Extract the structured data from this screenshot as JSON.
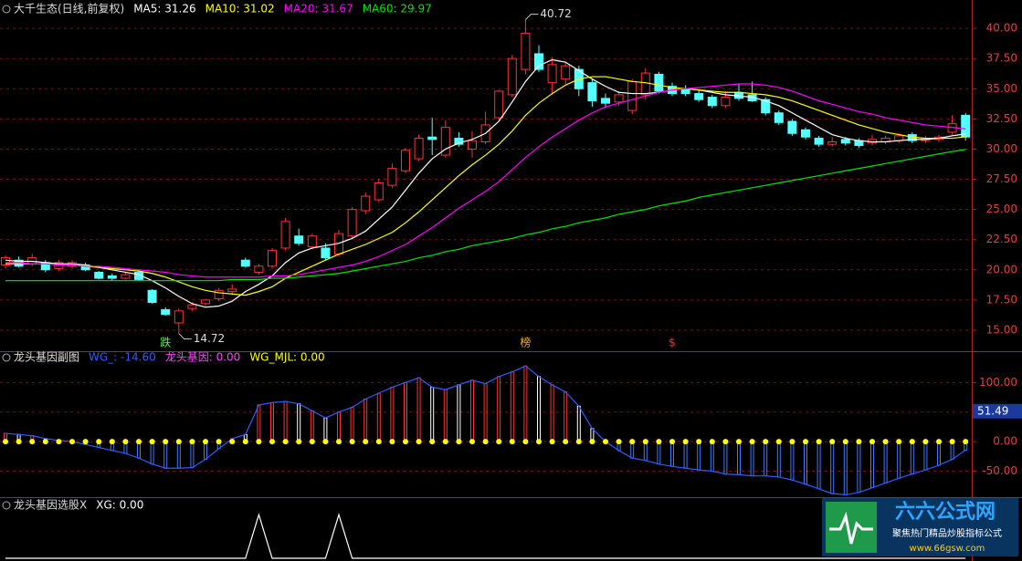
{
  "chart_data": [
    {
      "type": "candlestick",
      "title": "大千生态(日线,前复权)",
      "candles": {
        "open": [
          20.4,
          20.8,
          20.5,
          20.6,
          20.1,
          20.3,
          20.4,
          19.8,
          19.5,
          19.3,
          19.8,
          18.3,
          16.7,
          15.6,
          16.8,
          17.2,
          17.6,
          18.2,
          20.8,
          19.8,
          20.3,
          21.8,
          22.8,
          21.9,
          21.8,
          21.3,
          22.8,
          24.9,
          25.8,
          27.0,
          28.2,
          29.2,
          31.0,
          29.5,
          30.9,
          30.0,
          30.6,
          32.6,
          34.5,
          36.6,
          37.9,
          35.5,
          35.8,
          36.6,
          35.5,
          34.2,
          33.9,
          33.2,
          34.5,
          36.2,
          35.2,
          35.0,
          34.6,
          34.3,
          33.6,
          34.7,
          34.5,
          34.1,
          33.0,
          32.3,
          31.6,
          30.9,
          30.4,
          30.8,
          30.7,
          30.5,
          30.6,
          30.7,
          31.2,
          30.7,
          30.8,
          31.4,
          32.8
        ],
        "high": [
          21.2,
          21.1,
          21.3,
          20.8,
          20.8,
          20.8,
          20.6,
          19.9,
          19.7,
          19.8,
          20.0,
          18.4,
          16.9,
          16.8,
          17.3,
          17.6,
          18.5,
          18.8,
          21.0,
          20.5,
          21.8,
          24.3,
          23.4,
          23.0,
          22.2,
          23.3,
          25.2,
          26.4,
          27.5,
          28.8,
          30.1,
          31.2,
          32.6,
          32.4,
          31.4,
          31.5,
          33.1,
          34.9,
          37.8,
          40.72,
          38.6,
          37.6,
          37.2,
          36.9,
          35.8,
          34.6,
          34.8,
          35.8,
          36.7,
          36.4,
          35.5,
          35.3,
          34.9,
          34.5,
          34.8,
          35.4,
          35.6,
          34.3,
          33.2,
          32.5,
          31.8,
          31.1,
          31.0,
          31.0,
          30.9,
          31.2,
          31.1,
          31.3,
          31.4,
          31.1,
          31.2,
          32.8,
          33.0
        ],
        "low": [
          20.1,
          20.2,
          20.3,
          19.8,
          19.9,
          20.1,
          19.9,
          19.2,
          19.1,
          19.2,
          19.1,
          17.2,
          16.2,
          14.72,
          16.6,
          17.0,
          17.4,
          17.9,
          20.2,
          19.6,
          20.1,
          21.6,
          22.0,
          21.7,
          20.8,
          21.1,
          22.6,
          24.6,
          25.6,
          26.8,
          28.0,
          29.0,
          29.5,
          29.3,
          30.2,
          29.3,
          30.4,
          32.3,
          34.3,
          36.2,
          36.4,
          34.5,
          35.4,
          34.4,
          33.5,
          33.4,
          33.6,
          32.9,
          34.1,
          34.6,
          34.4,
          34.4,
          33.9,
          33.4,
          33.4,
          34.0,
          33.9,
          32.8,
          32.0,
          31.1,
          30.8,
          30.2,
          30.2,
          30.3,
          30.1,
          30.3,
          30.4,
          30.5,
          30.5,
          30.5,
          30.6,
          31.2,
          30.7
        ],
        "close": [
          21.0,
          20.3,
          21.0,
          20.0,
          20.6,
          20.6,
          20.0,
          19.3,
          19.3,
          19.6,
          19.2,
          17.3,
          16.3,
          16.6,
          17.1,
          17.5,
          18.3,
          18.4,
          20.3,
          20.3,
          21.6,
          24.0,
          22.2,
          22.8,
          21.0,
          23.0,
          25.0,
          26.1,
          27.2,
          28.4,
          29.9,
          30.9,
          30.8,
          31.8,
          30.4,
          30.7,
          32.0,
          34.8,
          37.5,
          39.6,
          36.6,
          37.0,
          36.9,
          35.0,
          34.0,
          33.8,
          34.5,
          35.6,
          36.3,
          34.8,
          34.6,
          34.6,
          34.1,
          33.6,
          34.3,
          34.2,
          34.0,
          33.0,
          32.2,
          31.3,
          31.0,
          30.4,
          30.6,
          30.5,
          30.3,
          30.8,
          30.9,
          31.1,
          30.7,
          30.9,
          31.0,
          32.1,
          31.0
        ]
      },
      "up_color": "#ff3232",
      "down_color": "#54ffff",
      "series": [
        {
          "name": "MA5: 31.26",
          "color": "#ffffff",
          "values": [
            20.8,
            20.7,
            20.7,
            20.6,
            20.5,
            20.5,
            20.4,
            20.2,
            20.0,
            19.8,
            19.6,
            19.1,
            18.5,
            17.8,
            17.2,
            16.9,
            17.0,
            17.4,
            18.2,
            18.8,
            19.5,
            20.6,
            21.4,
            21.8,
            22.0,
            22.2,
            22.6,
            23.2,
            24.2,
            25.2,
            26.6,
            28.0,
            29.2,
            30.0,
            30.5,
            30.8,
            31.3,
            32.3,
            33.9,
            35.6,
            36.9,
            37.4,
            37.2,
            36.5,
            35.8,
            35.2,
            34.7,
            34.6,
            34.6,
            34.7,
            34.9,
            35.0,
            34.9,
            34.7,
            34.5,
            34.4,
            34.3,
            34.0,
            33.6,
            33.0,
            32.4,
            31.8,
            31.2,
            30.9,
            30.7,
            30.6,
            30.6,
            30.7,
            30.8,
            30.8,
            30.9,
            31.1,
            31.26
          ]
        },
        {
          "name": "MA10: 31.02",
          "color": "#ffff00",
          "values": [
            20.5,
            20.5,
            20.5,
            20.5,
            20.4,
            20.4,
            20.3,
            20.2,
            20.1,
            20.0,
            19.9,
            19.7,
            19.4,
            19.0,
            18.6,
            18.3,
            18.1,
            18.0,
            17.9,
            18.2,
            18.6,
            19.3,
            19.8,
            20.3,
            20.8,
            21.3,
            21.7,
            22.1,
            22.6,
            23.1,
            23.9,
            24.8,
            25.8,
            26.8,
            27.8,
            28.7,
            29.5,
            30.4,
            31.5,
            32.8,
            33.8,
            34.6,
            35.3,
            35.8,
            36.0,
            36.0,
            35.8,
            35.6,
            35.5,
            35.3,
            35.1,
            35.0,
            34.9,
            34.8,
            34.7,
            34.7,
            34.6,
            34.5,
            34.3,
            34.0,
            33.6,
            33.2,
            32.8,
            32.4,
            32.0,
            31.7,
            31.4,
            31.2,
            31.0,
            30.9,
            30.9,
            30.9,
            31.02
          ]
        },
        {
          "name": "MA20: 31.67",
          "color": "#ff00ff",
          "values": [
            20.6,
            20.6,
            20.5,
            20.5,
            20.4,
            20.4,
            20.3,
            20.3,
            20.2,
            20.1,
            20.0,
            19.9,
            19.8,
            19.6,
            19.5,
            19.4,
            19.4,
            19.4,
            19.4,
            19.4,
            19.5,
            19.5,
            19.6,
            19.8,
            20.0,
            20.2,
            20.4,
            20.7,
            21.1,
            21.6,
            22.1,
            22.8,
            23.5,
            24.3,
            25.1,
            25.8,
            26.5,
            27.3,
            28.3,
            29.3,
            30.2,
            31.0,
            31.7,
            32.4,
            33.0,
            33.5,
            33.8,
            34.1,
            34.4,
            34.7,
            34.9,
            35.0,
            35.1,
            35.2,
            35.3,
            35.4,
            35.4,
            35.3,
            35.1,
            34.8,
            34.4,
            34.0,
            33.7,
            33.4,
            33.1,
            32.9,
            32.6,
            32.4,
            32.2,
            32.0,
            31.9,
            31.8,
            31.67
          ]
        },
        {
          "name": "MA60: 29.97",
          "color": "#00e600",
          "values": [
            19.1,
            19.1,
            19.1,
            19.1,
            19.1,
            19.1,
            19.1,
            19.1,
            19.1,
            19.1,
            19.1,
            19.1,
            19.1,
            19.1,
            19.1,
            19.1,
            19.1,
            19.2,
            19.2,
            19.2,
            19.3,
            19.3,
            19.4,
            19.5,
            19.6,
            19.7,
            19.9,
            20.1,
            20.3,
            20.5,
            20.7,
            21.0,
            21.2,
            21.5,
            21.7,
            22.0,
            22.2,
            22.4,
            22.6,
            22.9,
            23.1,
            23.4,
            23.6,
            23.9,
            24.1,
            24.3,
            24.6,
            24.8,
            25.0,
            25.3,
            25.5,
            25.7,
            26.0,
            26.2,
            26.4,
            26.6,
            26.8,
            27.0,
            27.2,
            27.4,
            27.6,
            27.8,
            28.0,
            28.2,
            28.4,
            28.6,
            28.8,
            29.0,
            29.2,
            29.4,
            29.6,
            29.8,
            29.97
          ]
        }
      ],
      "signals": [
        null,
        null,
        null,
        null,
        null,
        null,
        null,
        null,
        null,
        null,
        null,
        null,
        {
          "text": "跌",
          "color": "#40ff40"
        },
        null,
        null,
        null,
        null,
        null,
        null,
        null,
        null,
        null,
        null,
        null,
        null,
        null,
        null,
        null,
        null,
        null,
        null,
        null,
        null,
        null,
        null,
        null,
        null,
        null,
        null,
        {
          "text": "榜",
          "color": "#ffb000"
        },
        null,
        null,
        null,
        null,
        null,
        null,
        null,
        null,
        null,
        null,
        {
          "text": "$",
          "color": "#ff3232"
        },
        null,
        null,
        null,
        null,
        null,
        null,
        null,
        null,
        null,
        null,
        null,
        null,
        null,
        null,
        null,
        null,
        null,
        null,
        null,
        null,
        null,
        null
      ],
      "ylim": [
        13.26,
        42.35
      ],
      "yticks": [
        {
          "value": 15,
          "label": "15.00"
        },
        {
          "value": 17.5,
          "label": "17.50"
        },
        {
          "value": 20,
          "label": "20.00"
        },
        {
          "value": 22.5,
          "label": "22.50"
        },
        {
          "value": 25,
          "label": "25.00"
        },
        {
          "value": 27.5,
          "label": "27.50"
        },
        {
          "value": 30,
          "label": "30.00"
        },
        {
          "value": 32.5,
          "label": "32.50"
        },
        {
          "value": 35,
          "label": "35.00"
        },
        {
          "value": 37.5,
          "label": "37.50"
        },
        {
          "value": 40,
          "label": "40.00"
        }
      ],
      "grid": true
    },
    {
      "type": "bar",
      "title": "龙头基因副图",
      "series": [
        {
          "name": "WG_: -14.60",
          "color": "#2f5bff",
          "values": [
            14,
            12,
            10,
            5,
            2,
            0,
            -5,
            -10,
            -15,
            -20,
            -28,
            -38,
            -45,
            -45,
            -44,
            -30,
            -12,
            5,
            12,
            62,
            66,
            68,
            64,
            52,
            40,
            50,
            58,
            72,
            82,
            92,
            100,
            108,
            92,
            88,
            96,
            104,
            98,
            110,
            118,
            128,
            110,
            96,
            84,
            60,
            22,
            0,
            -15,
            -28,
            -32,
            -38,
            -42,
            -45,
            -48,
            -50,
            -55,
            -56,
            -58,
            -58,
            -60,
            -65,
            -72,
            -80,
            -88,
            -90,
            -86,
            -78,
            -70,
            -62,
            -55,
            -48,
            -40,
            -30,
            -14.6
          ]
        },
        {
          "name": "龙头基因: 0.00",
          "color": "#ff40ff"
        },
        {
          "name": "WG_MJL: 0.00",
          "color": "#ffff00",
          "values": [
            0,
            0,
            0,
            0,
            0,
            0,
            0,
            0,
            0,
            0,
            0,
            0,
            0,
            0,
            0,
            0,
            0,
            0,
            0,
            0,
            0,
            0,
            0,
            0,
            0,
            0,
            0,
            0,
            0,
            0,
            0,
            0,
            0,
            0,
            0,
            0,
            0,
            0,
            0,
            0,
            0,
            0,
            0,
            0,
            0,
            0,
            0,
            0,
            0,
            0,
            0,
            0,
            0,
            0,
            0,
            0,
            0,
            0,
            0,
            0,
            0,
            0,
            0,
            0,
            0,
            0,
            0,
            0,
            0,
            0,
            0,
            0,
            0
          ]
        }
      ],
      "current_value": 51.49,
      "ylim": [
        -94,
        153
      ],
      "yticks": [
        {
          "value": -50,
          "label": "-50.00"
        },
        {
          "value": 0,
          "label": "0.00"
        },
        {
          "value": 50,
          "label": "50.00"
        },
        {
          "value": 100,
          "label": "100.00"
        }
      ],
      "grid": true
    },
    {
      "type": "line",
      "title": "龙头基因选股X",
      "series": [
        {
          "name": "XG: 0.00",
          "color": "#ffffff",
          "values": [
            0,
            0,
            0,
            0,
            0,
            0,
            0,
            0,
            0,
            0,
            0,
            0,
            0,
            0,
            0,
            0,
            0,
            0,
            0,
            1,
            0,
            0,
            0,
            0,
            0,
            1,
            0,
            0,
            0,
            0,
            0,
            0,
            0,
            0,
            0,
            0,
            0,
            0,
            0,
            0,
            0,
            0,
            0,
            0,
            0,
            0,
            0,
            0,
            0,
            0,
            0,
            0,
            0,
            0,
            0,
            0,
            0,
            0,
            0,
            0,
            0,
            0,
            0,
            0,
            0,
            0,
            0,
            0,
            0,
            0,
            0,
            0,
            0
          ]
        }
      ],
      "ylim": [
        0,
        1.4
      ]
    }
  ],
  "watermark": {
    "name": "六六公式网",
    "slogan": "聚焦热门精品炒股指标公式",
    "url": "www.66gsw.com"
  }
}
